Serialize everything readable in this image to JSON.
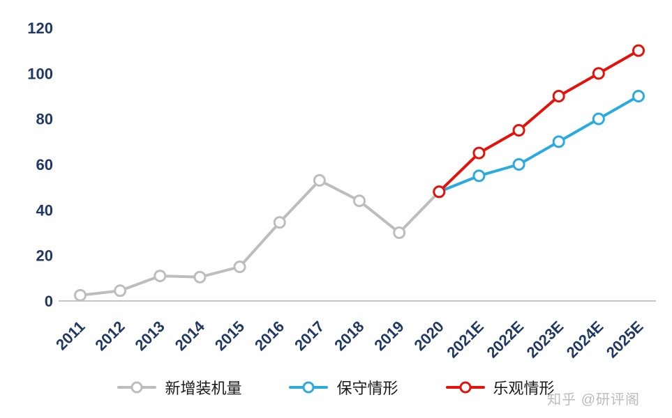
{
  "chart_data": {
    "type": "line",
    "title": "",
    "xlabel": "",
    "ylabel": "",
    "categories": [
      "2011",
      "2012",
      "2013",
      "2014",
      "2015",
      "2016",
      "2017",
      "2018",
      "2019",
      "2020",
      "2021E",
      "2022E",
      "2023E",
      "2024E",
      "2025E"
    ],
    "series": [
      {
        "name": "新增装机量",
        "color": "#BDBDBD",
        "values": [
          2.5,
          4.5,
          11,
          10.5,
          15,
          34.5,
          53,
          44,
          30,
          48,
          null,
          null,
          null,
          null,
          null
        ]
      },
      {
        "name": "保守情形",
        "color": "#29ABE2",
        "values": [
          null,
          null,
          null,
          null,
          null,
          null,
          null,
          null,
          null,
          48,
          55,
          60,
          70,
          80,
          90
        ]
      },
      {
        "name": "乐观情形",
        "color": "#E3120B",
        "values": [
          null,
          null,
          null,
          null,
          null,
          null,
          null,
          null,
          null,
          48,
          65,
          75,
          90,
          100,
          110
        ]
      }
    ],
    "ylim": [
      0,
      120
    ],
    "ytick_step": 20,
    "yticks": [
      0,
      20,
      40,
      60,
      80,
      100,
      120
    ],
    "grid": false,
    "legend_position": "bottom",
    "marker": "open-circle",
    "axis_text_color": "#1F3864",
    "axis_line_color": "#C6C6C6"
  },
  "legend": {
    "items": [
      "新增装机量",
      "保守情形",
      "乐观情形"
    ]
  },
  "watermark": {
    "text": "知乎 @研评阁"
  }
}
